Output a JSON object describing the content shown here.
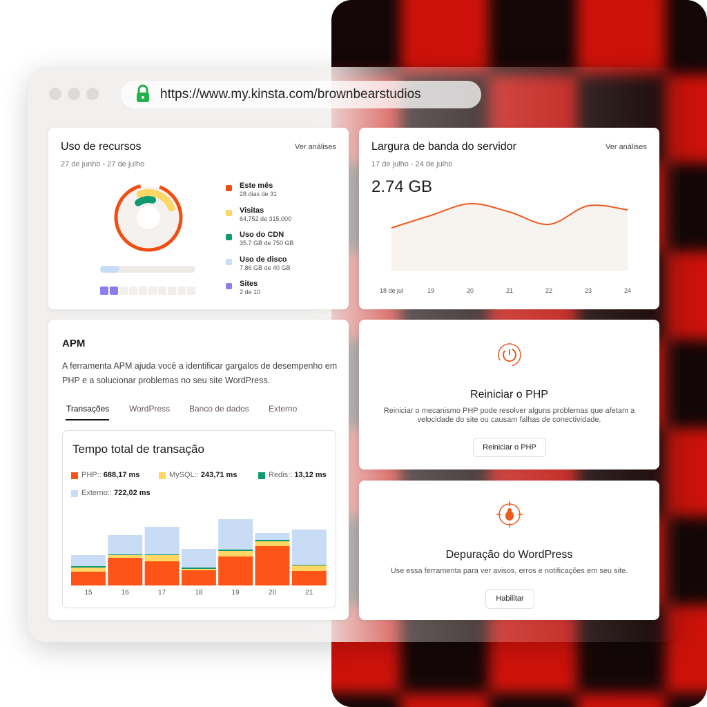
{
  "browser": {
    "url": "https://www.my.kinsta.com/brownbearstudios"
  },
  "resource_usage": {
    "title": "Uso de recursos",
    "link": "Ver análises",
    "date_range": "27 de junho - 27 de julho",
    "items": [
      {
        "label": "Este mês",
        "detail": "28 dias de 31",
        "color": "#f04e12"
      },
      {
        "label": "Visitas",
        "detail": "64,752 de 315,000",
        "color": "#fdd663"
      },
      {
        "label": "Uso do CDN",
        "detail": "35.7 GB de 750 GB",
        "color": "#0e9a6e"
      },
      {
        "label": "Uso de disco",
        "detail": "7.86 GB de 40 GB",
        "color": "#c8dcf5"
      },
      {
        "label": "Sites",
        "detail": "2 de 10",
        "color": "#8b7cf0"
      }
    ]
  },
  "bandwidth": {
    "title": "Largura de banda do servidor",
    "link": "Ver análises",
    "date_range": "17 de julho - 24 de julho",
    "total": "2.74 GB"
  },
  "apm": {
    "title": "APM",
    "description": "A ferramenta APM ajuda você a identificar gargalos de desempenho em PHP e a solucionar problemas no seu site WordPress.",
    "tabs": [
      "Transações",
      "WordPress",
      "Banco de dados",
      "Externo"
    ]
  },
  "restart_php": {
    "title": "Reiniciar o PHP",
    "description": "Reiniciar o mecanismo PHP pode resolver alguns problemas que afetam a velocidade do site ou causam falhas de conectividade.",
    "button": "Reiniciar o PHP"
  },
  "wp_debug": {
    "title": "Depuração do WordPress",
    "description": "Use essa ferramenta para ver avisos, erros e notificações em seu site.",
    "button": "Habilitar"
  },
  "chart_data": [
    {
      "type": "line",
      "categories": [
        "18 de jul",
        "19",
        "20",
        "21",
        "22",
        "23",
        "24"
      ],
      "values": [
        62,
        80,
        97,
        85,
        67,
        94,
        88
      ],
      "color": "#f05a1e",
      "ylim": [
        0,
        100
      ]
    },
    {
      "type": "stacked-bar",
      "title": "Tempo total de transação",
      "categories": [
        "15",
        "16",
        "17",
        "18",
        "19",
        "20",
        "21"
      ],
      "ylim": [
        0,
        300
      ],
      "series": [
        {
          "name": "PHP::",
          "total": "688,17 ms",
          "color": "#ff5417",
          "values": [
            60,
            120,
            105,
            66,
            126,
            171,
            63
          ]
        },
        {
          "name": "MySQL::",
          "total": "243,71 ms",
          "color": "#fdd663",
          "values": [
            18,
            12,
            27,
            6,
            24,
            21,
            24
          ]
        },
        {
          "name": "Redis::",
          "total": "13,12 ms",
          "color": "#0e9a6e",
          "values": [
            6,
            3,
            3,
            6,
            6,
            6,
            3
          ]
        },
        {
          "name": "Externo::",
          "total": "722,02 ms",
          "color": "#c8dcf5",
          "values": [
            48,
            84,
            120,
            81,
            132,
            30,
            153
          ]
        }
      ]
    }
  ]
}
